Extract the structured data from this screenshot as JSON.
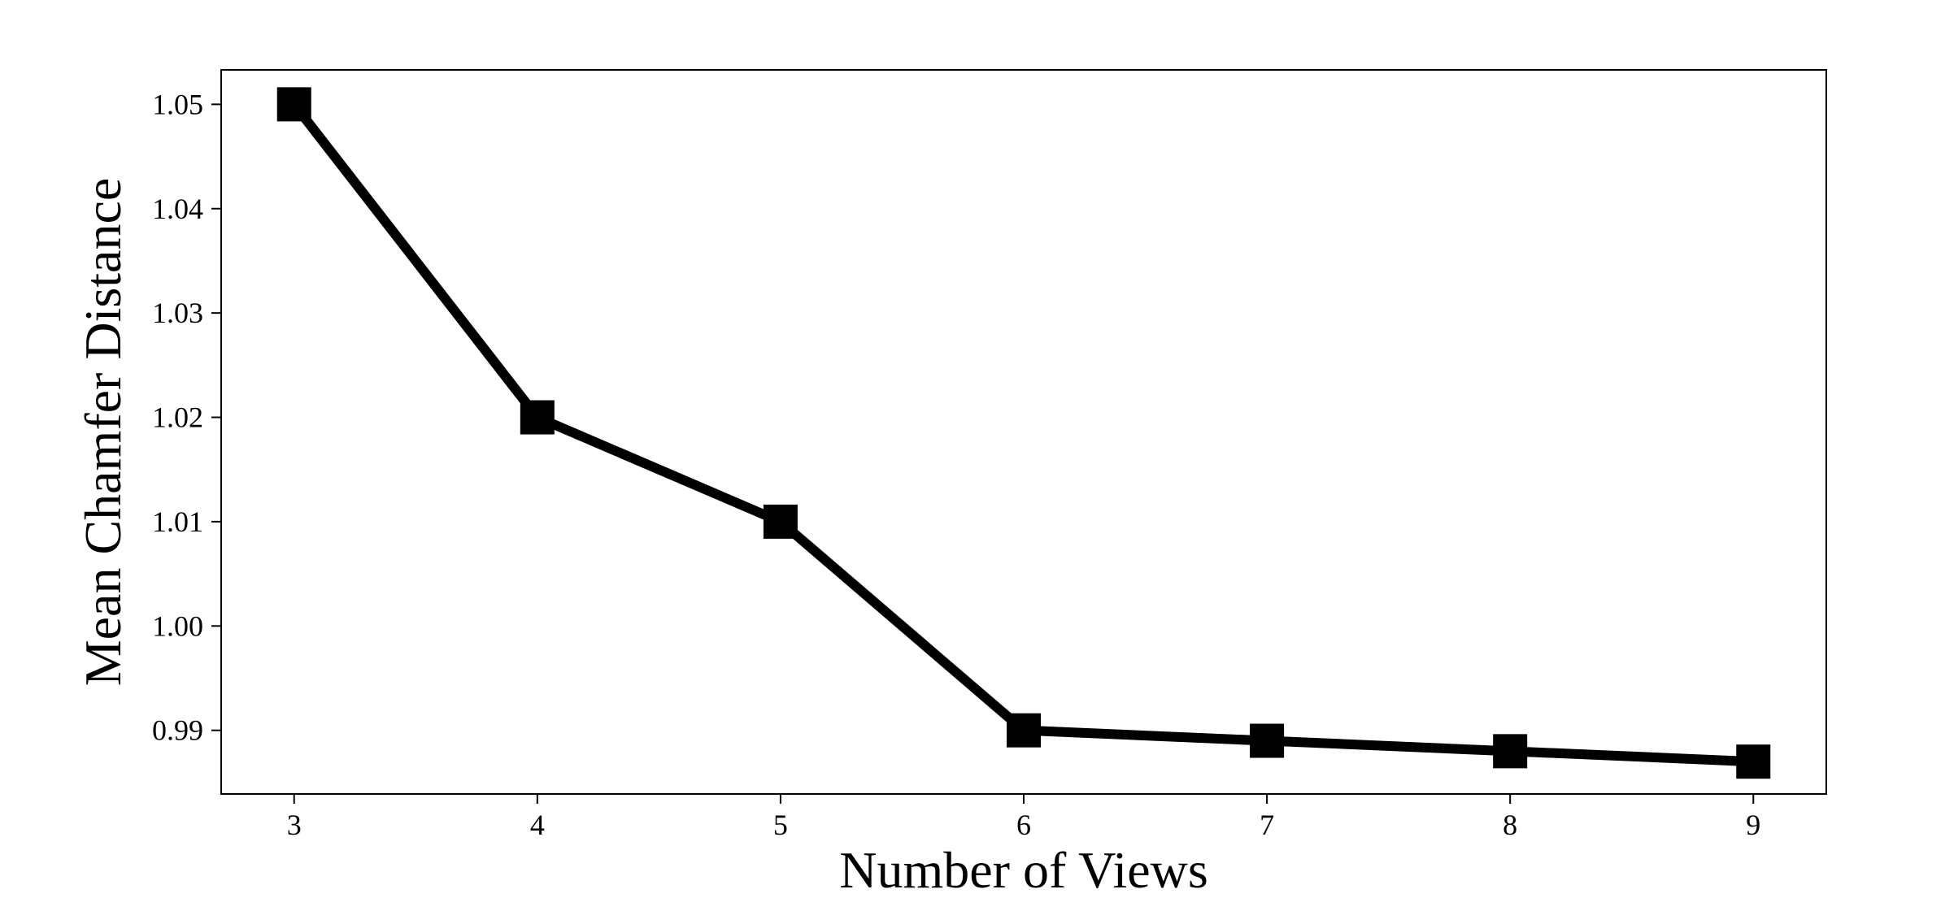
{
  "chart_data": {
    "type": "line",
    "title": "",
    "xlabel": "Number of Views",
    "ylabel": "Mean Chamfer Distance",
    "x": [
      3,
      4,
      5,
      6,
      7,
      8,
      9
    ],
    "series": [
      {
        "values": [
          1.05,
          1.02,
          1.01,
          0.99,
          0.989,
          0.988,
          0.987
        ],
        "marker": "square",
        "color": "#000000"
      }
    ],
    "xticks": [
      "3",
      "4",
      "5",
      "6",
      "7",
      "8",
      "9"
    ],
    "yticks": [
      "0.99",
      "1.00",
      "1.01",
      "1.02",
      "1.03",
      "1.04",
      "1.05"
    ],
    "xlim": [
      2.7,
      9.3
    ],
    "ylim": [
      0.9839,
      1.0533
    ],
    "grid": false,
    "legend": false
  }
}
